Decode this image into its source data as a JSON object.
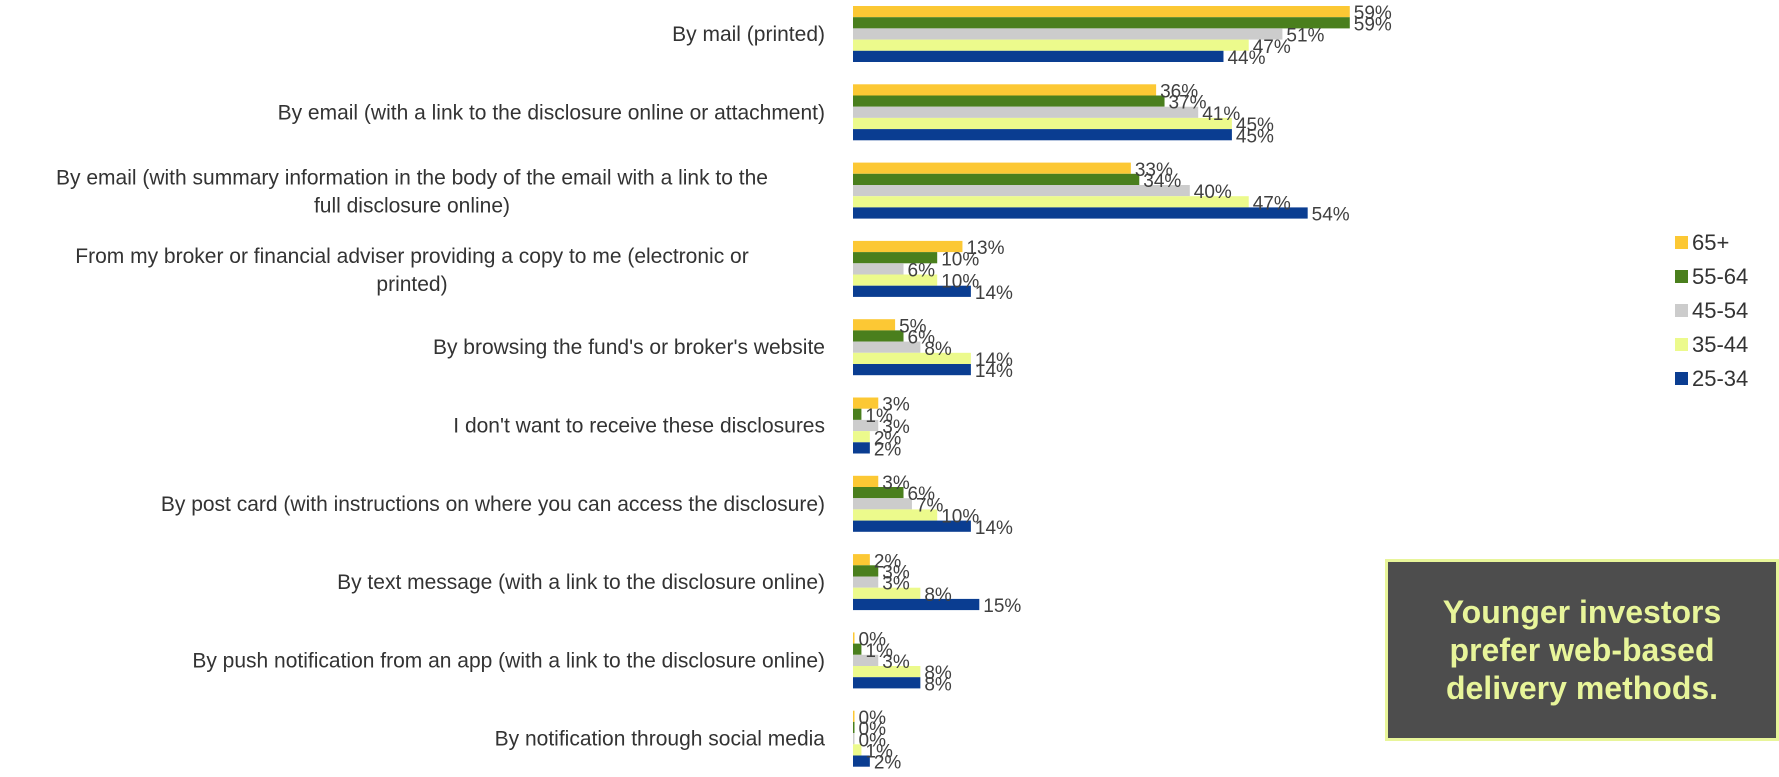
{
  "chart_data": {
    "type": "bar",
    "orientation": "horizontal",
    "categories": [
      "By mail (printed)",
      "By email (with a link to the disclosure online or attachment)",
      "By email (with summary information in the body of the email with a link to the full disclosure online)",
      "From my broker or financial adviser providing a copy to me (electronic or printed)",
      "By browsing the fund's or broker's website",
      "I don't want to receive these disclosures",
      "By post card (with instructions on where you can access the disclosure)",
      "By text message (with a link to the disclosure online)",
      "By push notification from an app (with a link to the disclosure online)",
      "By notification through social media"
    ],
    "category_lines": [
      [
        "By mail (printed)"
      ],
      [
        "By email (with a link to the disclosure online or attachment)"
      ],
      [
        "By email (with summary information in the body of the email with a link to the",
        "full disclosure online)"
      ],
      [
        "From my broker or financial adviser providing a copy to me (electronic or",
        "printed)"
      ],
      [
        "By browsing the fund's or broker's website"
      ],
      [
        "I don't want to receive these disclosures"
      ],
      [
        "By post card (with instructions on where you can access the disclosure)"
      ],
      [
        "By text message (with a link to the disclosure online)"
      ],
      [
        "By push notification from an app (with a link to the disclosure online)"
      ],
      [
        "By notification through social media"
      ]
    ],
    "series": [
      {
        "name": "65+",
        "color": "#fcc834",
        "values": [
          59,
          36,
          33,
          13,
          5,
          3,
          3,
          2,
          0,
          0
        ]
      },
      {
        "name": "55-64",
        "color": "#4a7f1d",
        "values": [
          59,
          37,
          34,
          10,
          6,
          1,
          6,
          3,
          1,
          0
        ]
      },
      {
        "name": "45-54",
        "color": "#cccccc",
        "values": [
          51,
          41,
          40,
          6,
          8,
          3,
          7,
          3,
          3,
          0
        ]
      },
      {
        "name": "35-44",
        "color": "#ecfa8c",
        "values": [
          47,
          45,
          47,
          10,
          14,
          2,
          10,
          8,
          8,
          1
        ]
      },
      {
        "name": "25-34",
        "color": "#0a3d91",
        "values": [
          44,
          45,
          54,
          14,
          14,
          2,
          14,
          15,
          8,
          2
        ]
      }
    ],
    "value_suffix": "%",
    "xlim": [
      0,
      100
    ],
    "grid": false,
    "legend_position": "right"
  },
  "callout": {
    "text": "Younger investors prefer web-based delivery methods."
  }
}
